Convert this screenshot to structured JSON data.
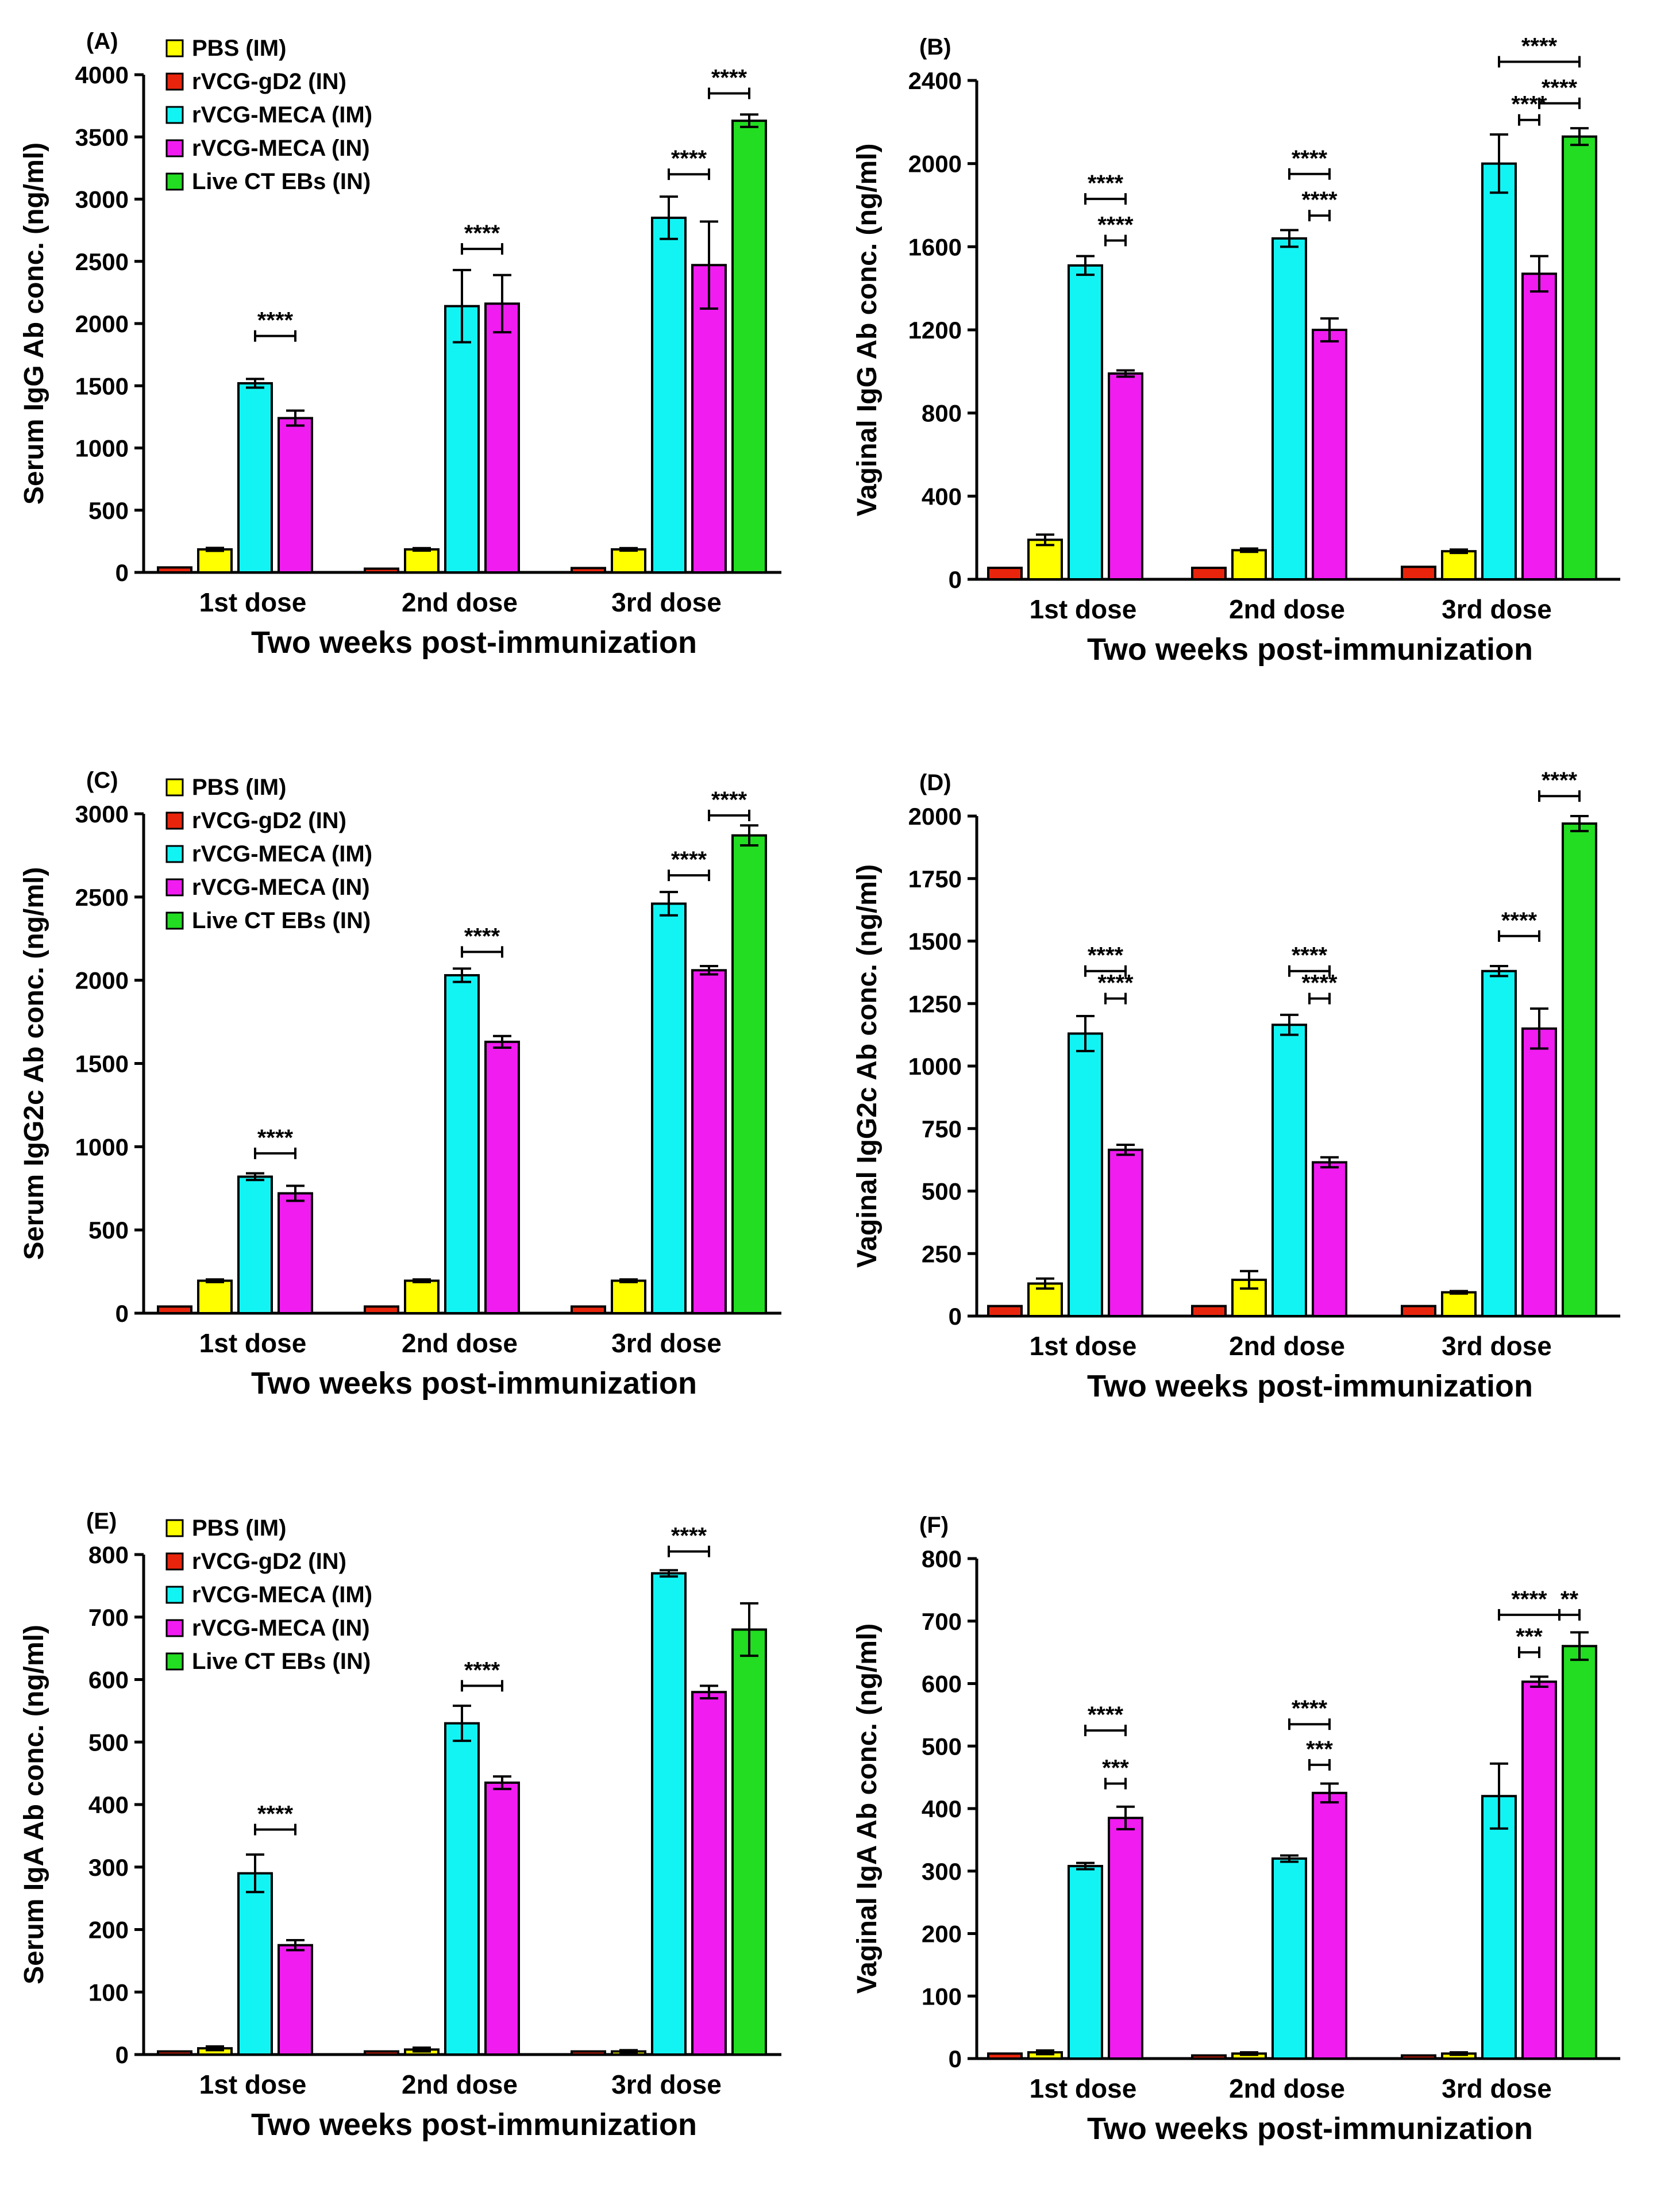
{
  "figure": {
    "xlabel": "Two weeks post-immunization",
    "categories": [
      "1st dose",
      "2nd dose",
      "3rd dose"
    ],
    "legend": [
      {
        "label": "PBS (IM)",
        "color": "#ffff00"
      },
      {
        "label": "rVCG-gD2 (IN)",
        "color": "#e8250c"
      },
      {
        "label": "rVCG-MECA (IM)",
        "color": "#12f4f4"
      },
      {
        "label": "rVCG-MECA (IN)",
        "color": "#f01cf0"
      },
      {
        "label": "Live CT EBs (IN)",
        "color": "#22dd22"
      }
    ]
  },
  "chart_data": [
    {
      "panel": "(A)",
      "type": "bar",
      "ylabel": "Serum IgG Ab conc. (ng/ml)",
      "legend_shown": true,
      "ylim": [
        0,
        4000
      ],
      "yticks": [
        0,
        500,
        1000,
        1500,
        2000,
        2500,
        3000,
        3500,
        4000
      ],
      "categories": [
        "1st dose",
        "2nd dose",
        "3rd dose"
      ],
      "series": [
        {
          "name": "rVCG-gD2 (IN)",
          "values": [
            40,
            30,
            35
          ],
          "errors": [
            0,
            0,
            0
          ]
        },
        {
          "name": "PBS (IM)",
          "values": [
            185,
            185,
            185
          ],
          "errors": [
            12,
            10,
            10
          ]
        },
        {
          "name": "rVCG-MECA (IM)",
          "values": [
            1520,
            2140,
            2850
          ],
          "errors": [
            35,
            290,
            170
          ]
        },
        {
          "name": "rVCG-MECA (IN)",
          "values": [
            1240,
            2160,
            2470
          ],
          "errors": [
            60,
            230,
            350
          ]
        },
        {
          "name": "Live CT EBs (IN)",
          "values": [
            null,
            null,
            3630
          ],
          "errors": [
            0,
            0,
            50
          ]
        }
      ],
      "significance": [
        {
          "label": "****",
          "group": 0,
          "from": 2,
          "to": 3,
          "y": 1900
        },
        {
          "label": "****",
          "group": 1,
          "from": 2,
          "to": 3,
          "y": 2600
        },
        {
          "label": "****",
          "group": 2,
          "from": 2,
          "to": 3,
          "y": 3200
        },
        {
          "label": "****",
          "group": 2,
          "from": 3,
          "to": 4,
          "y": 3850
        }
      ]
    },
    {
      "panel": "(B)",
      "type": "bar",
      "ylabel": "Vaginal IgG Ab conc. (ng/ml)",
      "legend_shown": false,
      "ylim": [
        0,
        2400
      ],
      "yticks": [
        0,
        400,
        800,
        1200,
        1600,
        2000,
        2400
      ],
      "categories": [
        "1st dose",
        "2nd dose",
        "3rd dose"
      ],
      "series": [
        {
          "name": "rVCG-gD2 (IN)",
          "values": [
            55,
            55,
            60
          ],
          "errors": [
            0,
            0,
            0
          ]
        },
        {
          "name": "PBS (IM)",
          "values": [
            190,
            140,
            135
          ],
          "errors": [
            25,
            8,
            8
          ]
        },
        {
          "name": "rVCG-MECA (IM)",
          "values": [
            1510,
            1640,
            2000
          ],
          "errors": [
            45,
            40,
            140
          ]
        },
        {
          "name": "rVCG-MECA (IN)",
          "values": [
            990,
            1200,
            1470
          ],
          "errors": [
            15,
            55,
            85
          ]
        },
        {
          "name": "Live CT EBs (IN)",
          "values": [
            null,
            null,
            2130
          ],
          "errors": [
            0,
            0,
            40
          ]
        }
      ],
      "significance": [
        {
          "label": "****",
          "group": 0,
          "from": 2,
          "to": 3,
          "y": 1830
        },
        {
          "label": "****",
          "group": 0,
          "from": 2.5,
          "to": 3,
          "y": 1630
        },
        {
          "label": "****",
          "group": 1,
          "from": 2,
          "to": 3,
          "y": 1950
        },
        {
          "label": "****",
          "group": 1,
          "from": 2.5,
          "to": 3,
          "y": 1750
        },
        {
          "label": "****",
          "group": 2,
          "from": 2,
          "to": 4,
          "y": 2490
        },
        {
          "label": "****",
          "group": 2,
          "from": 3,
          "to": 4,
          "y": 2290
        },
        {
          "label": "****",
          "group": 2,
          "from": 2.5,
          "to": 3,
          "y": 2210
        }
      ]
    },
    {
      "panel": "(C)",
      "type": "bar",
      "ylabel": "Serum IgG2c Ab conc. (ng/ml)",
      "legend_shown": true,
      "ylim": [
        0,
        3000
      ],
      "yticks": [
        0,
        500,
        1000,
        1500,
        2000,
        2500,
        3000
      ],
      "categories": [
        "1st dose",
        "2nd dose",
        "3rd dose"
      ],
      "series": [
        {
          "name": "rVCG-gD2 (IN)",
          "values": [
            40,
            40,
            40
          ],
          "errors": [
            0,
            0,
            0
          ]
        },
        {
          "name": "PBS (IM)",
          "values": [
            195,
            195,
            195
          ],
          "errors": [
            8,
            8,
            8
          ]
        },
        {
          "name": "rVCG-MECA (IM)",
          "values": [
            820,
            2030,
            2460
          ],
          "errors": [
            20,
            40,
            70
          ]
        },
        {
          "name": "rVCG-MECA (IN)",
          "values": [
            720,
            1630,
            2060
          ],
          "errors": [
            45,
            35,
            25
          ]
        },
        {
          "name": "Live CT EBs (IN)",
          "values": [
            null,
            null,
            2870
          ],
          "errors": [
            0,
            0,
            60
          ]
        }
      ],
      "significance": [
        {
          "label": "****",
          "group": 0,
          "from": 2,
          "to": 3,
          "y": 960
        },
        {
          "label": "****",
          "group": 1,
          "from": 2,
          "to": 3,
          "y": 2170
        },
        {
          "label": "****",
          "group": 2,
          "from": 2,
          "to": 3,
          "y": 2630
        },
        {
          "label": "****",
          "group": 2,
          "from": 3,
          "to": 4,
          "y": 2990
        }
      ]
    },
    {
      "panel": "(D)",
      "type": "bar",
      "ylabel": "Vaginal IgG2c Ab conc. (ng/ml)",
      "legend_shown": false,
      "ylim": [
        0,
        2000
      ],
      "yticks": [
        0,
        250,
        500,
        750,
        1000,
        1250,
        1500,
        1750,
        2000
      ],
      "categories": [
        "1st dose",
        "2nd dose",
        "3rd dose"
      ],
      "series": [
        {
          "name": "rVCG-gD2 (IN)",
          "values": [
            40,
            40,
            40
          ],
          "errors": [
            0,
            0,
            0
          ]
        },
        {
          "name": "PBS (IM)",
          "values": [
            130,
            145,
            95
          ],
          "errors": [
            20,
            35,
            5
          ]
        },
        {
          "name": "rVCG-MECA (IM)",
          "values": [
            1130,
            1165,
            1380
          ],
          "errors": [
            70,
            40,
            20
          ]
        },
        {
          "name": "rVCG-MECA (IN)",
          "values": [
            665,
            615,
            1150
          ],
          "errors": [
            20,
            20,
            80
          ]
        },
        {
          "name": "Live CT EBs (IN)",
          "values": [
            null,
            null,
            1970
          ],
          "errors": [
            0,
            0,
            30
          ]
        }
      ],
      "significance": [
        {
          "label": "****",
          "group": 0,
          "from": 2,
          "to": 3,
          "y": 1380
        },
        {
          "label": "****",
          "group": 0,
          "from": 2.5,
          "to": 3,
          "y": 1270
        },
        {
          "label": "****",
          "group": 1,
          "from": 2,
          "to": 3,
          "y": 1380
        },
        {
          "label": "****",
          "group": 1,
          "from": 2.5,
          "to": 3,
          "y": 1270
        },
        {
          "label": "****",
          "group": 2,
          "from": 2,
          "to": 3,
          "y": 1520
        },
        {
          "label": "****",
          "group": 2,
          "from": 3,
          "to": 4,
          "y": 2080
        }
      ]
    },
    {
      "panel": "(E)",
      "type": "bar",
      "ylabel": "Serum IgA Ab conc. (ng/ml)",
      "legend_shown": true,
      "ylim": [
        0,
        800
      ],
      "yticks": [
        0,
        100,
        200,
        300,
        400,
        500,
        600,
        700,
        800
      ],
      "categories": [
        "1st dose",
        "2nd dose",
        "3rd dose"
      ],
      "series": [
        {
          "name": "rVCG-gD2 (IN)",
          "values": [
            5,
            5,
            5
          ],
          "errors": [
            0,
            0,
            0
          ]
        },
        {
          "name": "PBS (IM)",
          "values": [
            10,
            8,
            5
          ],
          "errors": [
            3,
            3,
            2
          ]
        },
        {
          "name": "rVCG-MECA (IM)",
          "values": [
            290,
            530,
            770
          ],
          "errors": [
            30,
            28,
            5
          ]
        },
        {
          "name": "rVCG-MECA (IN)",
          "values": [
            175,
            435,
            580
          ],
          "errors": [
            8,
            10,
            10
          ]
        },
        {
          "name": "Live CT EBs (IN)",
          "values": [
            null,
            null,
            680
          ],
          "errors": [
            0,
            0,
            42
          ]
        }
      ],
      "significance": [
        {
          "label": "****",
          "group": 0,
          "from": 2,
          "to": 3,
          "y": 360
        },
        {
          "label": "****",
          "group": 1,
          "from": 2,
          "to": 3,
          "y": 590
        },
        {
          "label": "****",
          "group": 2,
          "from": 2,
          "to": 3,
          "y": 805
        }
      ]
    },
    {
      "panel": "(F)",
      "type": "bar",
      "ylabel": "Vaginal IgA Ab conc. (ng/ml)",
      "legend_shown": false,
      "ylim": [
        0,
        800
      ],
      "yticks": [
        0,
        100,
        200,
        300,
        400,
        500,
        600,
        700,
        800
      ],
      "categories": [
        "1st dose",
        "2nd dose",
        "3rd dose"
      ],
      "series": [
        {
          "name": "rVCG-gD2 (IN)",
          "values": [
            8,
            5,
            5
          ],
          "errors": [
            0,
            0,
            0
          ]
        },
        {
          "name": "PBS (IM)",
          "values": [
            10,
            8,
            8
          ],
          "errors": [
            3,
            2,
            2
          ]
        },
        {
          "name": "rVCG-MECA (IM)",
          "values": [
            308,
            320,
            420
          ],
          "errors": [
            5,
            5,
            52
          ]
        },
        {
          "name": "rVCG-MECA (IN)",
          "values": [
            385,
            425,
            603
          ],
          "errors": [
            18,
            15,
            8
          ]
        },
        {
          "name": "Live CT EBs (IN)",
          "values": [
            null,
            null,
            660
          ],
          "errors": [
            0,
            0,
            22
          ]
        }
      ],
      "significance": [
        {
          "label": "****",
          "group": 0,
          "from": 2,
          "to": 3,
          "y": 525
        },
        {
          "label": "***",
          "group": 0,
          "from": 2.5,
          "to": 3,
          "y": 440
        },
        {
          "label": "****",
          "group": 1,
          "from": 2,
          "to": 3,
          "y": 535
        },
        {
          "label": "***",
          "group": 1,
          "from": 2.5,
          "to": 3,
          "y": 470
        },
        {
          "label": "****",
          "group": 2,
          "from": 2,
          "to": 3.5,
          "y": 710
        },
        {
          "label": "**",
          "group": 2,
          "from": 3.5,
          "to": 4,
          "y": 710
        },
        {
          "label": "***",
          "group": 2,
          "from": 2.5,
          "to": 3,
          "y": 650
        }
      ]
    }
  ]
}
